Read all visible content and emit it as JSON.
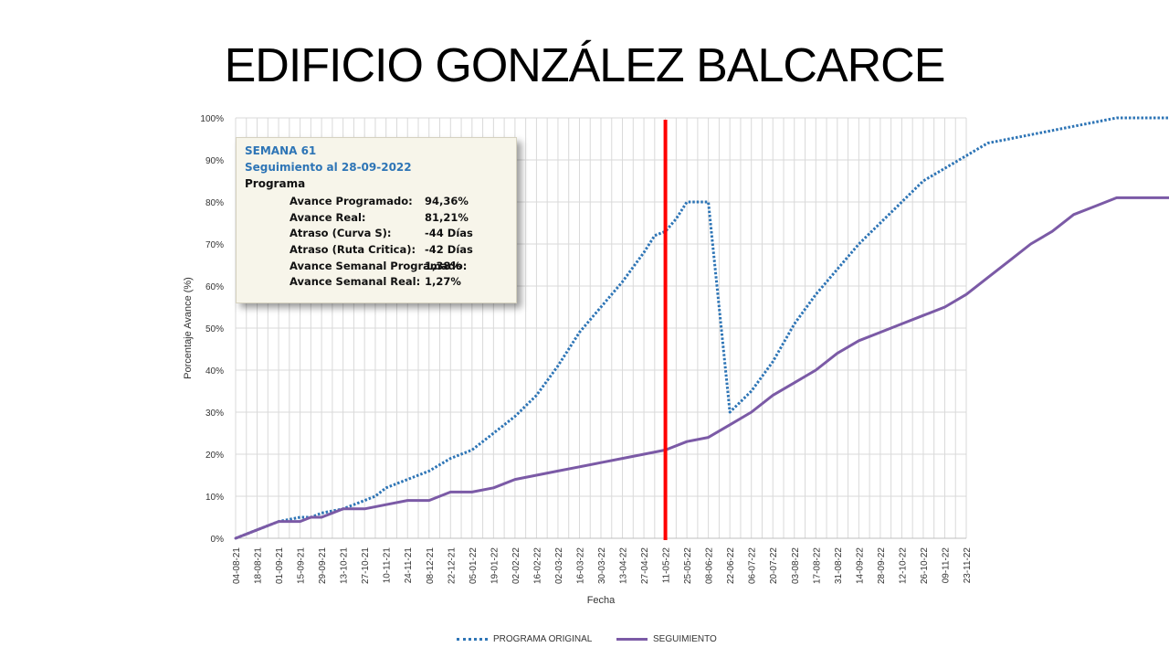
{
  "slide": {
    "title": "EDIFICIO GONZÁLEZ BALCARCE"
  },
  "info_box": {
    "week": "SEMANA 61",
    "tracking": "Seguimiento al 28-09-2022",
    "section": "Programa",
    "rows": [
      {
        "label": "Avance Programado:",
        "value": "94,36%"
      },
      {
        "label": "Avance Real:",
        "value": "81,21%"
      },
      {
        "label": "Atraso (Curva S):",
        "value": "-44 Días"
      },
      {
        "label": "Atraso (Ruta Critica):",
        "value": "-42 Días"
      },
      {
        "label": "Avance Semanal Programado:",
        "value": "1,38%"
      },
      {
        "label": "Avance Semanal Real:",
        "value": "1,27%"
      }
    ]
  },
  "chart_data": {
    "type": "line",
    "title": "",
    "xlabel": "Fecha",
    "ylabel": "Porcentaje Avance (%)",
    "ylim": [
      0,
      100
    ],
    "yticks": [
      "0%",
      "10%",
      "20%",
      "30%",
      "40%",
      "50%",
      "60%",
      "70%",
      "80%",
      "90%",
      "100%"
    ],
    "x_tick_labels": [
      "04-08-21",
      "18-08-21",
      "01-09-21",
      "15-09-21",
      "29-09-21",
      "13-10-21",
      "27-10-21",
      "10-11-21",
      "24-11-21",
      "08-12-21",
      "22-12-21",
      "05-01-22",
      "19-01-22",
      "02-02-22",
      "16-02-22",
      "02-03-22",
      "16-03-22",
      "30-03-22",
      "13-04-22",
      "27-04-22",
      "11-05-22",
      "25-05-22",
      "08-06-22",
      "22-06-22",
      "06-07-22",
      "20-07-22",
      "03-08-22",
      "17-08-22",
      "31-08-22",
      "14-09-22",
      "28-09-22",
      "12-10-22",
      "26-10-22",
      "09-11-22",
      "23-11-22"
    ],
    "x_label_unit": "week",
    "grid": true,
    "legend_position": "bottom",
    "status_marker": {
      "week": 40,
      "label": "",
      "color": "#ff0000"
    },
    "series": [
      {
        "name": "PROGRAMA ORIGINAL",
        "style": "dotted",
        "color": "#2e75b6",
        "x_weeks": [
          0,
          2,
          4,
          6,
          7,
          8,
          10,
          12,
          13,
          14,
          16,
          18,
          20,
          22,
          24,
          26,
          28,
          30,
          32,
          34,
          36,
          38,
          39,
          40,
          41,
          42,
          44,
          46,
          48,
          50,
          52,
          54,
          56,
          58,
          60,
          62,
          64,
          66,
          68,
          70,
          72,
          74,
          76,
          78,
          80,
          82,
          84,
          86,
          88,
          90,
          92,
          94,
          96,
          98,
          100,
          102,
          104,
          106,
          108,
          110,
          112,
          114,
          116
        ],
        "y": [
          0,
          2,
          4,
          5,
          5,
          6,
          7,
          9,
          10,
          12,
          14,
          16,
          19,
          21,
          25,
          29,
          34,
          41,
          49,
          55,
          61,
          68,
          72,
          73,
          76,
          80,
          80,
          30,
          35,
          42,
          51,
          58,
          64,
          70,
          75,
          80,
          85,
          88,
          91,
          94,
          95,
          96,
          97,
          98,
          99,
          100,
          100,
          100,
          100,
          100,
          100,
          100,
          100,
          100,
          100,
          100,
          100,
          100,
          100,
          100,
          100,
          100,
          100
        ]
      },
      {
        "name": "SEGUIMIENTO",
        "style": "solid",
        "color": "#7b5aa6",
        "x_weeks": [
          0,
          2,
          4,
          6,
          7,
          8,
          10,
          12,
          14,
          16,
          18,
          20,
          22,
          24,
          26,
          28,
          30,
          32,
          34,
          36,
          38,
          40,
          42,
          44,
          46,
          48,
          50,
          52,
          54,
          56,
          58,
          60,
          62,
          64,
          66,
          68,
          70,
          72,
          74,
          76,
          78,
          80,
          82,
          84,
          86,
          88,
          90,
          92,
          94,
          96,
          98,
          100,
          102,
          104,
          106,
          108,
          110,
          112,
          114,
          116,
          118,
          120,
          122
        ],
        "y": [
          0,
          2,
          4,
          4,
          5,
          5,
          7,
          7,
          8,
          9,
          9,
          11,
          11,
          12,
          14,
          15,
          16,
          17,
          18,
          19,
          20,
          21,
          23,
          24,
          27,
          30,
          34,
          37,
          40,
          44,
          47,
          49,
          51,
          53,
          55,
          58,
          62,
          66,
          70,
          73,
          77,
          79,
          81,
          81,
          81,
          81,
          81,
          81,
          81,
          81,
          81,
          81,
          81,
          81,
          81,
          81,
          81,
          81,
          81,
          81,
          81,
          81,
          81
        ]
      }
    ]
  }
}
